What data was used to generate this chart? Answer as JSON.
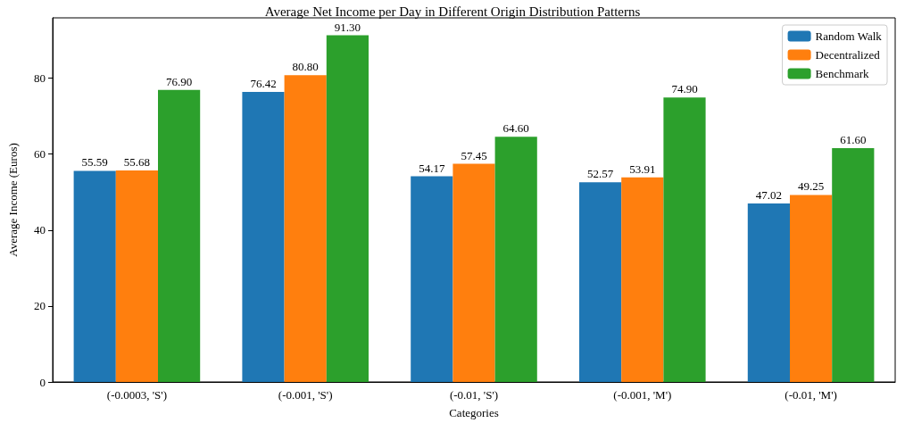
{
  "chart_data": {
    "type": "bar",
    "title": "Average Net Income per Day in Different Origin Distribution Patterns",
    "xlabel": "Categories",
    "ylabel": "Average Income (Euros)",
    "categories": [
      "(-0.0003, 'S')",
      "(-0.001, 'S')",
      "(-0.01, 'S')",
      "(-0.001, 'M')",
      "(-0.01, 'M')"
    ],
    "series": [
      {
        "name": "Random Walk",
        "color": "#1f77b4",
        "values": [
          55.59,
          76.42,
          54.17,
          52.57,
          47.02
        ]
      },
      {
        "name": "Decentralized",
        "color": "#ff7f0e",
        "values": [
          55.68,
          80.8,
          57.45,
          53.91,
          49.25
        ]
      },
      {
        "name": "Benchmark",
        "color": "#2ca02c",
        "values": [
          76.9,
          91.3,
          64.6,
          74.9,
          61.6
        ]
      }
    ],
    "value_labels": [
      [
        "55.59",
        "76.42",
        "54.17",
        "52.57",
        "47.02"
      ],
      [
        "55.68",
        "80.80",
        "57.45",
        "53.91",
        "49.25"
      ],
      [
        "76.90",
        "91.30",
        "64.60",
        "74.90",
        "61.60"
      ]
    ],
    "ylim": [
      0,
      95.9
    ],
    "yticks": [
      0,
      20,
      40,
      60,
      80
    ],
    "grid": false,
    "legend": "top right"
  }
}
